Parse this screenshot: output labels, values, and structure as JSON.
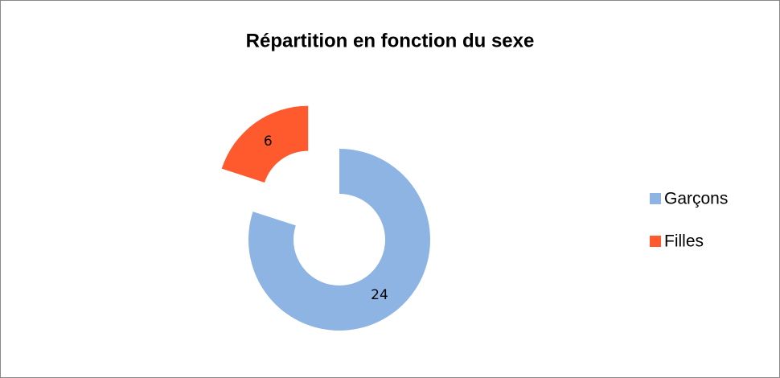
{
  "chart_data": {
    "type": "donut",
    "title": "Répartition en fonction du sexe",
    "categories": [
      "Garçons",
      "Filles"
    ],
    "values": [
      24,
      6
    ],
    "colors": [
      "#8eb4e3",
      "#ff5a2d"
    ],
    "legend": "right"
  }
}
